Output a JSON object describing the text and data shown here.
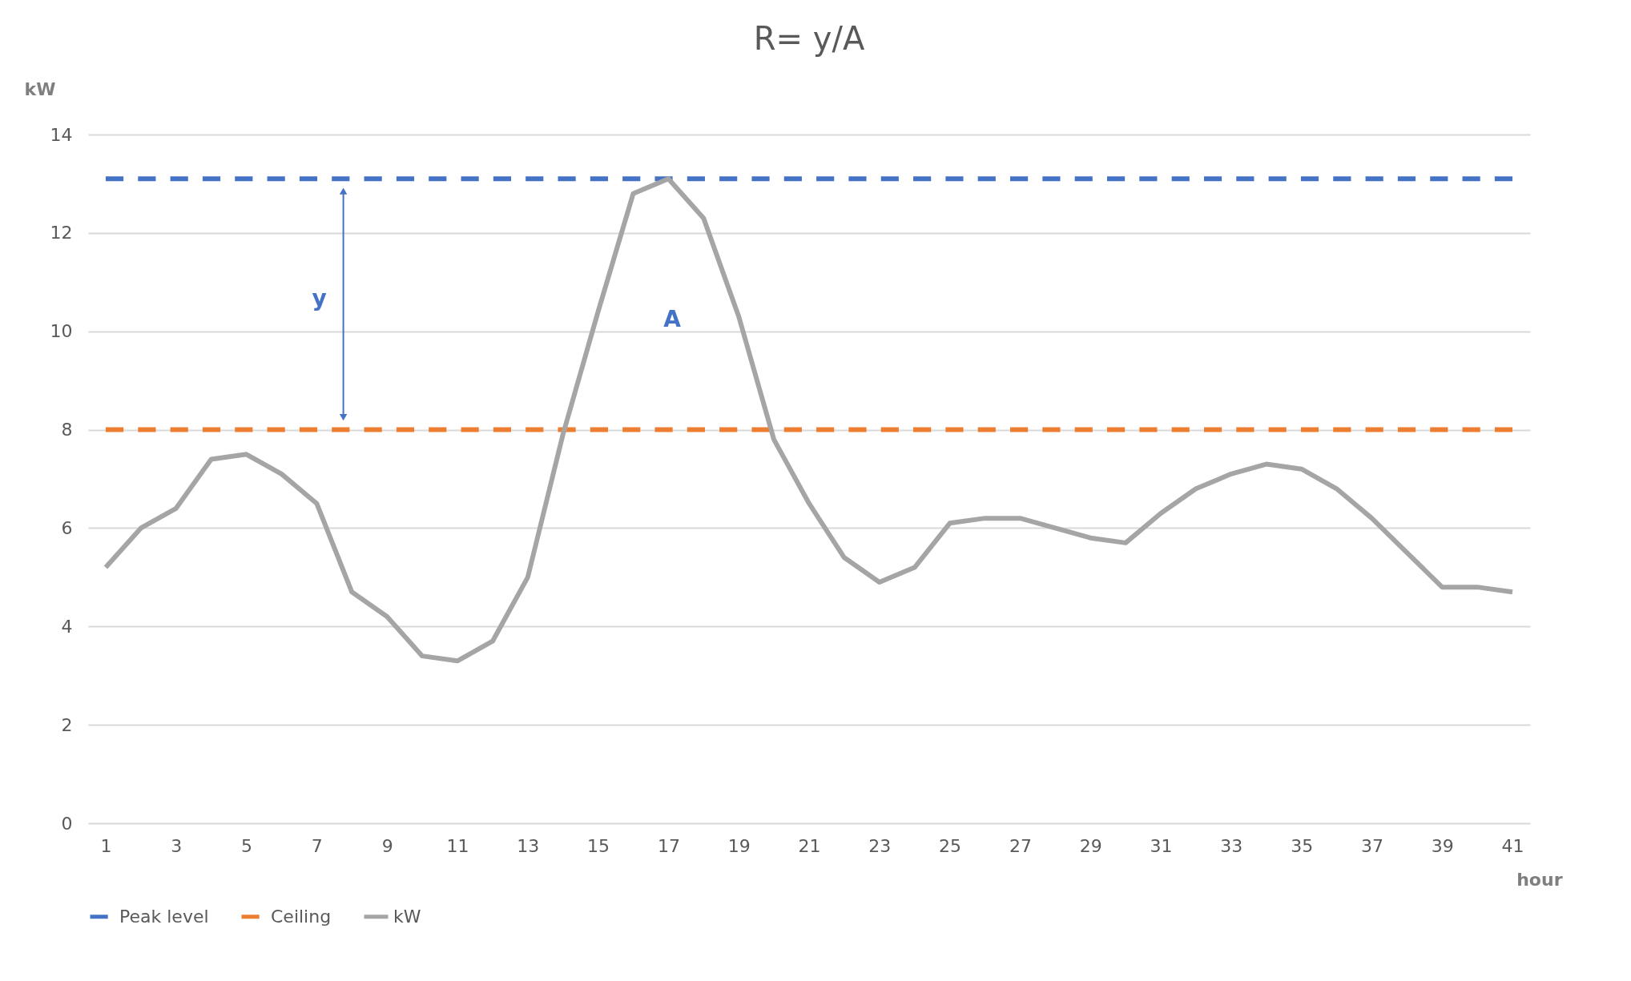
{
  "chart_data": {
    "type": "line",
    "title": "R= y/A",
    "xlabel": "hour",
    "ylabel": "kW",
    "x": [
      1,
      2,
      3,
      4,
      5,
      6,
      7,
      8,
      9,
      10,
      11,
      12,
      13,
      14,
      15,
      16,
      17,
      18,
      19,
      20,
      21,
      22,
      23,
      24,
      25,
      26,
      27,
      28,
      29,
      30,
      31,
      32,
      33,
      34,
      35,
      36,
      37,
      38,
      39,
      40,
      41
    ],
    "series": [
      {
        "name": "Peak level",
        "color": "#4472c4",
        "line_style": "dashed",
        "values": [
          13.1,
          13.1,
          13.1,
          13.1,
          13.1,
          13.1,
          13.1,
          13.1,
          13.1,
          13.1,
          13.1,
          13.1,
          13.1,
          13.1,
          13.1,
          13.1,
          13.1,
          13.1,
          13.1,
          13.1,
          13.1,
          13.1,
          13.1,
          13.1,
          13.1,
          13.1,
          13.1,
          13.1,
          13.1,
          13.1,
          13.1,
          13.1,
          13.1,
          13.1,
          13.1,
          13.1,
          13.1,
          13.1,
          13.1,
          13.1,
          13.1
        ]
      },
      {
        "name": "Ceiling",
        "color": "#ed7d31",
        "line_style": "dashed",
        "values": [
          8,
          8,
          8,
          8,
          8,
          8,
          8,
          8,
          8,
          8,
          8,
          8,
          8,
          8,
          8,
          8,
          8,
          8,
          8,
          8,
          8,
          8,
          8,
          8,
          8,
          8,
          8,
          8,
          8,
          8,
          8,
          8,
          8,
          8,
          8,
          8,
          8,
          8,
          8,
          8,
          8
        ]
      },
      {
        "name": "kW",
        "color": "#a5a5a5",
        "line_style": "solid",
        "values": [
          5.2,
          6.0,
          6.4,
          7.4,
          7.5,
          7.1,
          6.5,
          4.7,
          4.2,
          3.4,
          3.3,
          3.7,
          5.0,
          7.9,
          10.4,
          12.8,
          13.1,
          12.3,
          10.3,
          7.8,
          6.5,
          5.4,
          4.9,
          5.2,
          6.1,
          6.2,
          6.2,
          6.0,
          5.8,
          5.7,
          6.3,
          6.8,
          7.1,
          7.3,
          7.2,
          6.8,
          6.2,
          5.5,
          4.8,
          4.8,
          4.7
        ]
      }
    ],
    "xlim": [
      0.5,
      41.5
    ],
    "xticks": [
      1,
      3,
      5,
      7,
      9,
      11,
      13,
      15,
      17,
      19,
      21,
      23,
      25,
      27,
      29,
      31,
      33,
      35,
      37,
      39,
      41
    ],
    "ylim": [
      0,
      14
    ],
    "yticks": [
      0,
      2,
      4,
      6,
      8,
      10,
      12,
      14
    ],
    "grid": "y",
    "legend": "bottom",
    "annotations": [
      "y",
      "A"
    ]
  }
}
